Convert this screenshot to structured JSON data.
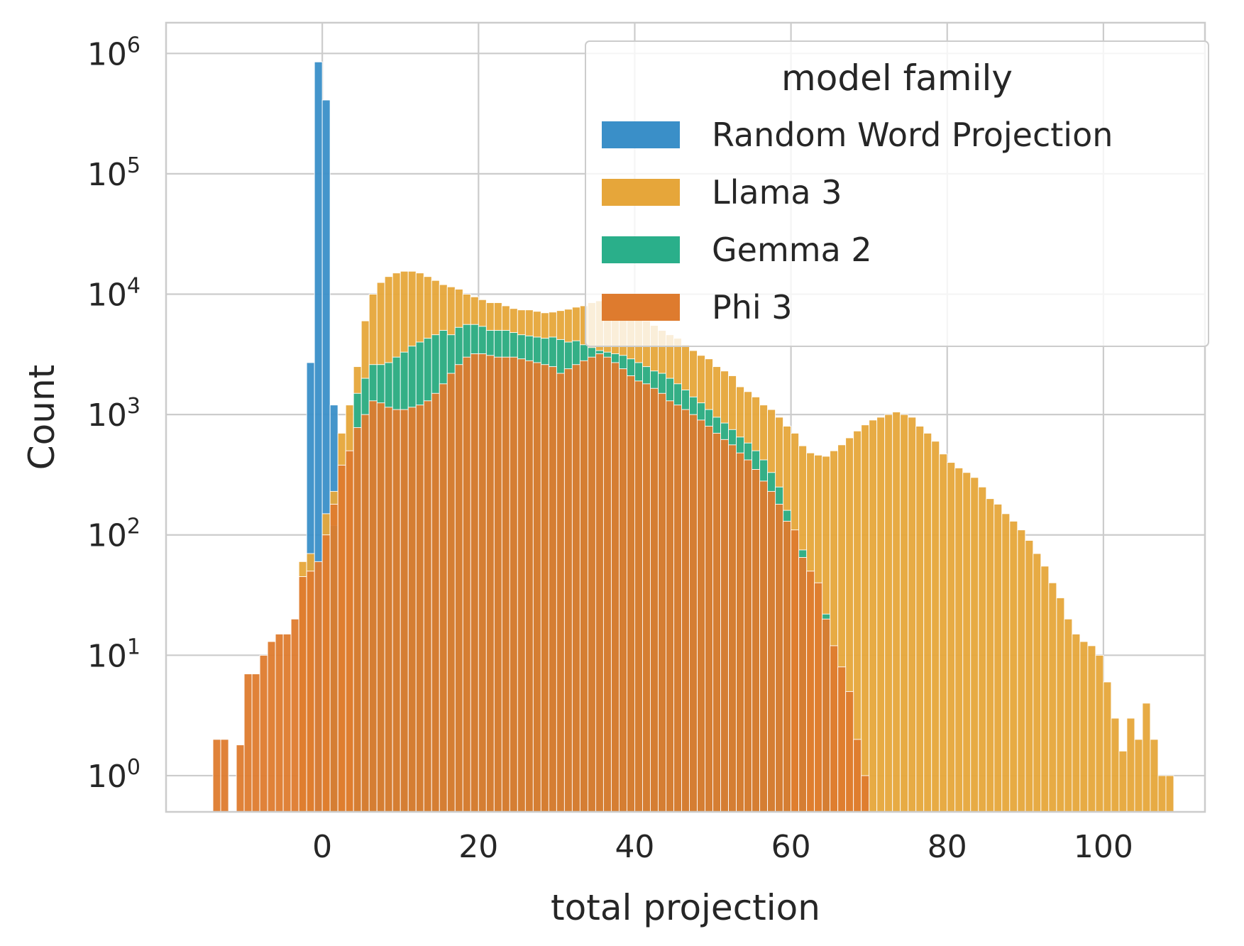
{
  "chart_data": {
    "type": "histogram",
    "xlabel": "total projection",
    "ylabel": "Count",
    "xlim": [
      -20,
      113
    ],
    "ylim": [
      0.5,
      1800000
    ],
    "y_scale": "log",
    "grid": true,
    "legend_position": "top-right",
    "bin_width": 1.0,
    "x_ticks": [
      0,
      20,
      40,
      60,
      80,
      100
    ],
    "y_ticks": [
      {
        "value": 1,
        "label": "10",
        "exp": "0"
      },
      {
        "value": 10,
        "label": "10",
        "exp": "1"
      },
      {
        "value": 100,
        "label": "10",
        "exp": "2"
      },
      {
        "value": 1000,
        "label": "10",
        "exp": "3"
      },
      {
        "value": 10000,
        "label": "10",
        "exp": "4"
      },
      {
        "value": 100000,
        "label": "10",
        "exp": "5"
      },
      {
        "value": 1000000,
        "label": "10",
        "exp": "6"
      }
    ],
    "legend_title": "model family",
    "series": [
      {
        "name": "Random Word Projection",
        "color": "#3a8fc8",
        "bins": [
          {
            "x": -2.0,
            "y": 2700
          },
          {
            "x": -1.0,
            "y": 850000
          },
          {
            "x": 0.0,
            "y": 410000
          },
          {
            "x": 1.0,
            "y": 1200
          }
        ]
      },
      {
        "name": "Llama 3",
        "color": "#e6a63a",
        "bins": [
          {
            "x": -3.0,
            "y": 60
          },
          {
            "x": -2.0,
            "y": 70
          },
          {
            "x": 0.0,
            "y": 150
          },
          {
            "x": 1.0,
            "y": 230
          },
          {
            "x": 2.0,
            "y": 700
          },
          {
            "x": 3.0,
            "y": 1200
          },
          {
            "x": 4.0,
            "y": 2500
          },
          {
            "x": 5.0,
            "y": 6000
          },
          {
            "x": 6.0,
            "y": 10000
          },
          {
            "x": 7.0,
            "y": 12500
          },
          {
            "x": 8.0,
            "y": 14000
          },
          {
            "x": 9.0,
            "y": 15000
          },
          {
            "x": 10.0,
            "y": 15500
          },
          {
            "x": 11.0,
            "y": 15500
          },
          {
            "x": 12.0,
            "y": 15000
          },
          {
            "x": 13.0,
            "y": 14000
          },
          {
            "x": 14.0,
            "y": 13000
          },
          {
            "x": 15.0,
            "y": 12000
          },
          {
            "x": 16.0,
            "y": 11500
          },
          {
            "x": 17.0,
            "y": 11000
          },
          {
            "x": 18.0,
            "y": 10000
          },
          {
            "x": 19.0,
            "y": 9500
          },
          {
            "x": 20.0,
            "y": 9000
          },
          {
            "x": 21.0,
            "y": 8500
          },
          {
            "x": 22.0,
            "y": 8500
          },
          {
            "x": 23.0,
            "y": 8000
          },
          {
            "x": 24.0,
            "y": 7600
          },
          {
            "x": 25.0,
            "y": 7400
          },
          {
            "x": 26.0,
            "y": 7400
          },
          {
            "x": 27.0,
            "y": 7200
          },
          {
            "x": 28.0,
            "y": 7000
          },
          {
            "x": 29.0,
            "y": 7100
          },
          {
            "x": 30.0,
            "y": 7300
          },
          {
            "x": 31.0,
            "y": 7500
          },
          {
            "x": 32.0,
            "y": 7800
          },
          {
            "x": 33.0,
            "y": 8000
          },
          {
            "x": 34.0,
            "y": 8500
          },
          {
            "x": 35.0,
            "y": 8800
          },
          {
            "x": 36.0,
            "y": 8500
          },
          {
            "x": 37.0,
            "y": 8000
          },
          {
            "x": 38.0,
            "y": 7500
          },
          {
            "x": 39.0,
            "y": 7000
          },
          {
            "x": 40.0,
            "y": 6500
          },
          {
            "x": 41.0,
            "y": 6000
          },
          {
            "x": 42.0,
            "y": 5500
          },
          {
            "x": 43.0,
            "y": 5000
          },
          {
            "x": 44.0,
            "y": 4600
          },
          {
            "x": 45.0,
            "y": 4300
          },
          {
            "x": 46.0,
            "y": 3800
          },
          {
            "x": 47.0,
            "y": 3400
          },
          {
            "x": 48.0,
            "y": 3100
          },
          {
            "x": 49.0,
            "y": 2900
          },
          {
            "x": 50.0,
            "y": 2500
          },
          {
            "x": 51.0,
            "y": 2300
          },
          {
            "x": 52.0,
            "y": 2100
          },
          {
            "x": 53.0,
            "y": 1700
          },
          {
            "x": 54.0,
            "y": 1550
          },
          {
            "x": 55.0,
            "y": 1400
          },
          {
            "x": 56.0,
            "y": 1200
          },
          {
            "x": 57.0,
            "y": 1100
          },
          {
            "x": 58.0,
            "y": 950
          },
          {
            "x": 59.0,
            "y": 800
          },
          {
            "x": 60.0,
            "y": 700
          },
          {
            "x": 61.0,
            "y": 550
          },
          {
            "x": 62.0,
            "y": 480
          },
          {
            "x": 63.0,
            "y": 460
          },
          {
            "x": 64.0,
            "y": 450
          },
          {
            "x": 65.0,
            "y": 500
          },
          {
            "x": 66.0,
            "y": 560
          },
          {
            "x": 67.0,
            "y": 640
          },
          {
            "x": 68.0,
            "y": 730
          },
          {
            "x": 69.0,
            "y": 820
          },
          {
            "x": 70.0,
            "y": 900
          },
          {
            "x": 71.0,
            "y": 950
          },
          {
            "x": 72.0,
            "y": 1000
          },
          {
            "x": 73.0,
            "y": 1050
          },
          {
            "x": 74.0,
            "y": 1000
          },
          {
            "x": 75.0,
            "y": 950
          },
          {
            "x": 76.0,
            "y": 800
          },
          {
            "x": 77.0,
            "y": 700
          },
          {
            "x": 78.0,
            "y": 600
          },
          {
            "x": 79.0,
            "y": 470
          },
          {
            "x": 80.0,
            "y": 400
          },
          {
            "x": 81.0,
            "y": 360
          },
          {
            "x": 82.0,
            "y": 330
          },
          {
            "x": 83.0,
            "y": 300
          },
          {
            "x": 84.0,
            "y": 250
          },
          {
            "x": 85.0,
            "y": 200
          },
          {
            "x": 86.0,
            "y": 180
          },
          {
            "x": 87.0,
            "y": 150
          },
          {
            "x": 88.0,
            "y": 130
          },
          {
            "x": 89.0,
            "y": 110
          },
          {
            "x": 90.0,
            "y": 90
          },
          {
            "x": 91.0,
            "y": 70
          },
          {
            "x": 92.0,
            "y": 55
          },
          {
            "x": 93.0,
            "y": 40
          },
          {
            "x": 94.0,
            "y": 30
          },
          {
            "x": 95.0,
            "y": 20
          },
          {
            "x": 96.0,
            "y": 15
          },
          {
            "x": 97.0,
            "y": 13
          },
          {
            "x": 98.0,
            "y": 12
          },
          {
            "x": 99.0,
            "y": 10
          },
          {
            "x": 100.0,
            "y": 6
          },
          {
            "x": 101.0,
            "y": 3
          },
          {
            "x": 102.0,
            "y": 1.6
          },
          {
            "x": 103.0,
            "y": 3
          },
          {
            "x": 104.0,
            "y": 2
          },
          {
            "x": 105.0,
            "y": 4
          },
          {
            "x": 106.0,
            "y": 2
          },
          {
            "x": 107.0,
            "y": 1
          },
          {
            "x": 108.0,
            "y": 1
          }
        ]
      },
      {
        "name": "Gemma 2",
        "color": "#2aaf8a",
        "bins": [
          {
            "x": 1.0,
            "y": 120
          },
          {
            "x": 4.0,
            "y": 1500
          },
          {
            "x": 5.0,
            "y": 2000
          },
          {
            "x": 6.0,
            "y": 2600
          },
          {
            "x": 7.0,
            "y": 2600
          },
          {
            "x": 8.0,
            "y": 2700
          },
          {
            "x": 9.0,
            "y": 3000
          },
          {
            "x": 10.0,
            "y": 3300
          },
          {
            "x": 11.0,
            "y": 3700
          },
          {
            "x": 12.0,
            "y": 4000
          },
          {
            "x": 13.0,
            "y": 4300
          },
          {
            "x": 14.0,
            "y": 4600
          },
          {
            "x": 15.0,
            "y": 5000
          },
          {
            "x": 16.0,
            "y": 4600
          },
          {
            "x": 17.0,
            "y": 5300
          },
          {
            "x": 18.0,
            "y": 5600
          },
          {
            "x": 19.0,
            "y": 5600
          },
          {
            "x": 20.0,
            "y": 5400
          },
          {
            "x": 21.0,
            "y": 5000
          },
          {
            "x": 22.0,
            "y": 5000
          },
          {
            "x": 23.0,
            "y": 5000
          },
          {
            "x": 24.0,
            "y": 4800
          },
          {
            "x": 25.0,
            "y": 4600
          },
          {
            "x": 26.0,
            "y": 4500
          },
          {
            "x": 27.0,
            "y": 4400
          },
          {
            "x": 28.0,
            "y": 4300
          },
          {
            "x": 29.0,
            "y": 4400
          },
          {
            "x": 30.0,
            "y": 4200
          },
          {
            "x": 31.0,
            "y": 4000
          },
          {
            "x": 32.0,
            "y": 4100
          },
          {
            "x": 33.0,
            "y": 3800
          },
          {
            "x": 34.0,
            "y": 3600
          },
          {
            "x": 35.0,
            "y": 3400
          },
          {
            "x": 36.0,
            "y": 3300
          },
          {
            "x": 37.0,
            "y": 3200
          },
          {
            "x": 38.0,
            "y": 3100
          },
          {
            "x": 39.0,
            "y": 2900
          },
          {
            "x": 40.0,
            "y": 2700
          },
          {
            "x": 41.0,
            "y": 2500
          },
          {
            "x": 42.0,
            "y": 2300
          },
          {
            "x": 43.0,
            "y": 2200
          },
          {
            "x": 44.0,
            "y": 2000
          },
          {
            "x": 45.0,
            "y": 1800
          },
          {
            "x": 46.0,
            "y": 1600
          },
          {
            "x": 47.0,
            "y": 1400
          },
          {
            "x": 48.0,
            "y": 1250
          },
          {
            "x": 49.0,
            "y": 1100
          },
          {
            "x": 50.0,
            "y": 950
          },
          {
            "x": 51.0,
            "y": 850
          },
          {
            "x": 52.0,
            "y": 750
          },
          {
            "x": 53.0,
            "y": 650
          },
          {
            "x": 54.0,
            "y": 580
          },
          {
            "x": 55.0,
            "y": 500
          },
          {
            "x": 56.0,
            "y": 420
          },
          {
            "x": 57.0,
            "y": 330
          },
          {
            "x": 58.0,
            "y": 250
          },
          {
            "x": 59.0,
            "y": 160
          },
          {
            "x": 61.0,
            "y": 75
          },
          {
            "x": 64.0,
            "y": 22
          }
        ]
      },
      {
        "name": "Phi 3",
        "color": "#de7b2e",
        "bins": [
          {
            "x": -14.0,
            "y": 2
          },
          {
            "x": -13.0,
            "y": 2
          },
          {
            "x": -11.0,
            "y": 1.8
          },
          {
            "x": -10.0,
            "y": 7
          },
          {
            "x": -9.0,
            "y": 7
          },
          {
            "x": -8.0,
            "y": 10
          },
          {
            "x": -7.0,
            "y": 13
          },
          {
            "x": -6.0,
            "y": 15
          },
          {
            "x": -5.0,
            "y": 15
          },
          {
            "x": -4.0,
            "y": 20
          },
          {
            "x": -3.0,
            "y": 45
          },
          {
            "x": -2.0,
            "y": 50
          },
          {
            "x": -1.0,
            "y": 60
          },
          {
            "x": 0.0,
            "y": 100
          },
          {
            "x": 1.0,
            "y": 180
          },
          {
            "x": 2.0,
            "y": 380
          },
          {
            "x": 3.0,
            "y": 500
          },
          {
            "x": 4.0,
            "y": 780
          },
          {
            "x": 5.0,
            "y": 1000
          },
          {
            "x": 6.0,
            "y": 1300
          },
          {
            "x": 7.0,
            "y": 1250
          },
          {
            "x": 8.0,
            "y": 1150
          },
          {
            "x": 9.0,
            "y": 1100
          },
          {
            "x": 10.0,
            "y": 1100
          },
          {
            "x": 11.0,
            "y": 1150
          },
          {
            "x": 12.0,
            "y": 1200
          },
          {
            "x": 13.0,
            "y": 1300
          },
          {
            "x": 14.0,
            "y": 1500
          },
          {
            "x": 15.0,
            "y": 1800
          },
          {
            "x": 16.0,
            "y": 2200
          },
          {
            "x": 17.0,
            "y": 2600
          },
          {
            "x": 18.0,
            "y": 3000
          },
          {
            "x": 19.0,
            "y": 3200
          },
          {
            "x": 20.0,
            "y": 3200
          },
          {
            "x": 21.0,
            "y": 3100
          },
          {
            "x": 22.0,
            "y": 3000
          },
          {
            "x": 23.0,
            "y": 3000
          },
          {
            "x": 24.0,
            "y": 3000
          },
          {
            "x": 25.0,
            "y": 2900
          },
          {
            "x": 26.0,
            "y": 2800
          },
          {
            "x": 27.0,
            "y": 2700
          },
          {
            "x": 28.0,
            "y": 2600
          },
          {
            "x": 29.0,
            "y": 2500
          },
          {
            "x": 30.0,
            "y": 2200
          },
          {
            "x": 31.0,
            "y": 2400
          },
          {
            "x": 32.0,
            "y": 2600
          },
          {
            "x": 33.0,
            "y": 2800
          },
          {
            "x": 34.0,
            "y": 3000
          },
          {
            "x": 35.0,
            "y": 3200
          },
          {
            "x": 36.0,
            "y": 3000
          },
          {
            "x": 37.0,
            "y": 2700
          },
          {
            "x": 38.0,
            "y": 2400
          },
          {
            "x": 39.0,
            "y": 2100
          },
          {
            "x": 40.0,
            "y": 1900
          },
          {
            "x": 41.0,
            "y": 1800
          },
          {
            "x": 42.0,
            "y": 1650
          },
          {
            "x": 43.0,
            "y": 1500
          },
          {
            "x": 44.0,
            "y": 1300
          },
          {
            "x": 45.0,
            "y": 1200
          },
          {
            "x": 46.0,
            "y": 1100
          },
          {
            "x": 47.0,
            "y": 1000
          },
          {
            "x": 48.0,
            "y": 900
          },
          {
            "x": 49.0,
            "y": 800
          },
          {
            "x": 50.0,
            "y": 700
          },
          {
            "x": 51.0,
            "y": 620
          },
          {
            "x": 52.0,
            "y": 560
          },
          {
            "x": 53.0,
            "y": 480
          },
          {
            "x": 54.0,
            "y": 420
          },
          {
            "x": 55.0,
            "y": 350
          },
          {
            "x": 56.0,
            "y": 280
          },
          {
            "x": 57.0,
            "y": 230
          },
          {
            "x": 58.0,
            "y": 180
          },
          {
            "x": 59.0,
            "y": 130
          },
          {
            "x": 60.0,
            "y": 110
          },
          {
            "x": 61.0,
            "y": 65
          },
          {
            "x": 62.0,
            "y": 50
          },
          {
            "x": 63.0,
            "y": 40
          },
          {
            "x": 64.0,
            "y": 20
          },
          {
            "x": 65.0,
            "y": 12
          },
          {
            "x": 66.0,
            "y": 8
          },
          {
            "x": 67.0,
            "y": 5
          },
          {
            "x": 68.0,
            "y": 2
          },
          {
            "x": 69.0,
            "y": 1
          }
        ]
      }
    ]
  }
}
